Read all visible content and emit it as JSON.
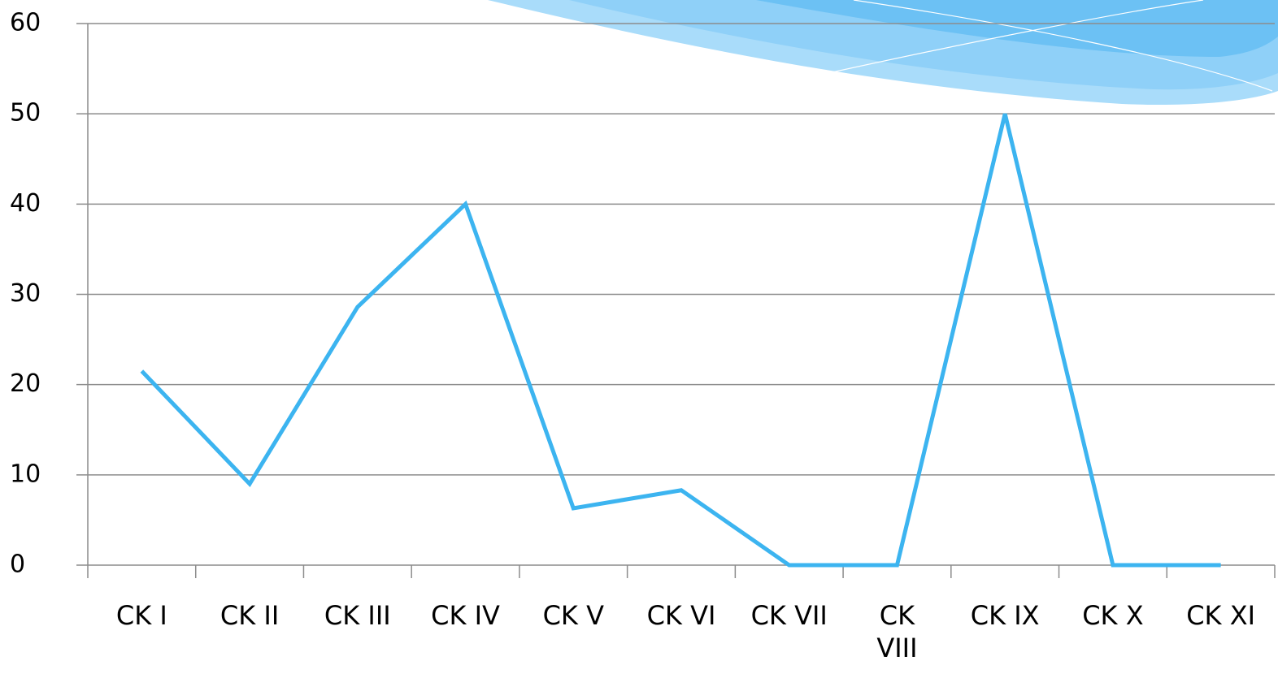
{
  "chart_data": {
    "type": "line",
    "categories": [
      "CK I",
      "CK II",
      "CK III",
      "CK IV",
      "CK V",
      "CK VI",
      "CK VII",
      "CK VIII",
      "CK IX",
      "CK X",
      "CK XI"
    ],
    "values": [
      21.5,
      9,
      28.6,
      40,
      6.3,
      8.3,
      0,
      0,
      50,
      0,
      0
    ],
    "color": "#3cb4f0",
    "ylim": [
      0,
      60
    ],
    "yticks": [
      0,
      10,
      20,
      30,
      40,
      50,
      60
    ],
    "grid": true
  }
}
